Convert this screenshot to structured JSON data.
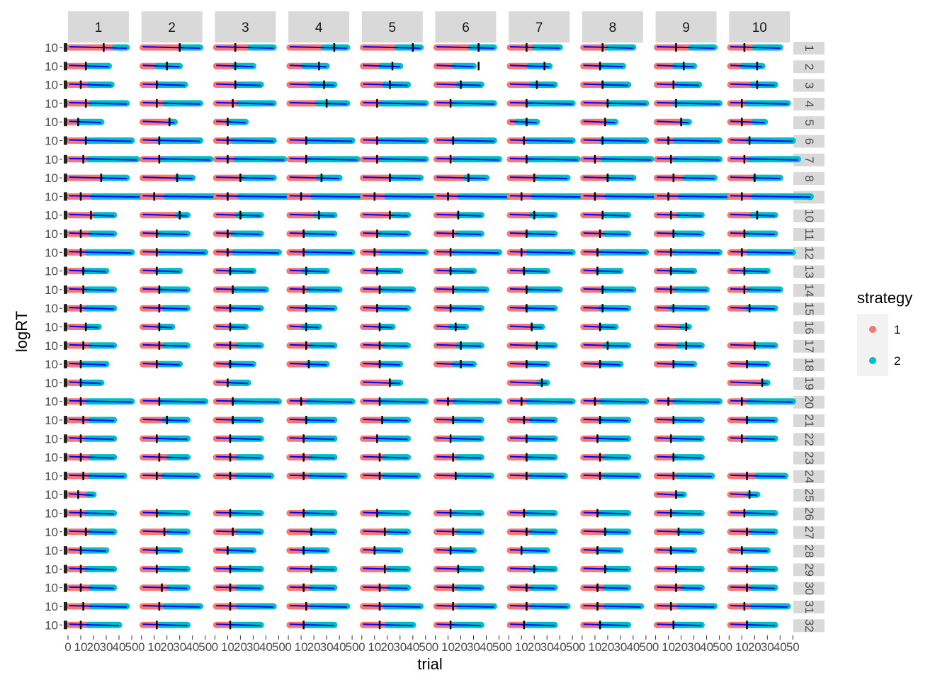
{
  "chart_data": {
    "type": "scatter",
    "title": "",
    "xlabel": "trial",
    "ylabel": "logRT",
    "facet_columns": [
      "1",
      "2",
      "3",
      "4",
      "5",
      "6",
      "7",
      "8",
      "9",
      "10"
    ],
    "facet_rows": [
      "1",
      "2",
      "3",
      "4",
      "5",
      "6",
      "7",
      "8",
      "9",
      "10",
      "11",
      "12",
      "13",
      "14",
      "15",
      "16",
      "17",
      "18",
      "19",
      "20",
      "21",
      "22",
      "23",
      "24",
      "25",
      "26",
      "27",
      "28",
      "29",
      "30",
      "31",
      "32"
    ],
    "x_ticks": [
      "0",
      "10",
      "20",
      "30",
      "40",
      "50"
    ],
    "y_tick": "10",
    "xlim": [
      0,
      50
    ],
    "legend": {
      "title": "strategy",
      "position": "right",
      "entries": [
        {
          "label": "1",
          "color": "#F8766D"
        },
        {
          "label": "2",
          "color": "#00BFC4"
        }
      ]
    },
    "colors": {
      "strategy_1": "#F8766D",
      "strategy_2": "#00BFC4",
      "fit_line": "#0000FF",
      "marker": "#000000",
      "strip_bg": "#D9D9D9"
    },
    "cells": [
      [
        "46/28/0.8",
        "46/30/0.7",
        "46/16/0.6",
        "46/36/0.6",
        "46/40/0.6",
        "46/34/0.6",
        "40/14/0.5",
        "40/16/0.5",
        "46/16/0.6",
        "40/12/0.5"
      ],
      [
        "32/14/0.5",
        "30/20/0.4",
        "30/16/0.5",
        "30/24/0.4",
        "30/24/0.5",
        "30/34/0.5",
        "32/28/0.5",
        "32/14/0.5",
        "30/22/0.5",
        "26/22/0.4"
      ],
      [
        "34/10/0.5",
        "34/12/0.4",
        "36/16/0.5",
        "36/28/0.5",
        "36/22/0.5",
        "36/20/0.5",
        "36/22/0.5",
        "36/16/0.5",
        "34/14/0.5",
        "36/22/0.5"
      ],
      [
        "46/14/0.4",
        "46/12/0.4",
        "46/14/0.4",
        "46/30/0.5",
        "50/12/0.3",
        "46/12/0.3",
        "50/14/0.3",
        "50/20/0.4",
        "50/16/0.3",
        "46/10/0.3"
      ],
      [
        "26/8/0.3",
        "26/22/0.9",
        "24/10/0.5",
        "0/0/0",
        "0/0/0",
        "0/0/0",
        "22/14/0.3",
        "26/18/0.8",
        "26/20/0.8",
        "28/10/0.7"
      ],
      [
        "50/14/0.3",
        "46/14/0.3",
        "46/10/0.3",
        "50/14/0.3",
        "50/12/0.3",
        "46/14/0.3",
        "50/12/0.3",
        "50/16/0.3",
        "50/10/0.3",
        "50/16/0.3"
      ],
      [
        "54/12/0.3",
        "54/14/0.3",
        "54/10/0.3",
        "54/14/0.3",
        "50/12/0.3",
        "50/12/0.3",
        "54/14/0.3",
        "54/10/0.3",
        "50/12/0.3",
        "54/12/0.3"
      ],
      [
        "46/26/0.6",
        "40/28/0.7",
        "46/20/0.5",
        "40/26/0.6",
        "46/22/0.5",
        "40/26/0.6",
        "46/20/0.5",
        "40/20/0.5",
        "46/14/0.5",
        "40/20/0.5"
      ],
      [
        "64/10/0.3",
        "64/10/0.3",
        "64/10/0.3",
        "64/10/0.3",
        "64/10/0.3",
        "64/10/0.3",
        "64/10/0.3",
        "64/10/0.3",
        "64/10/0.3",
        "64/10/0.3"
      ],
      [
        "36/18/0.6",
        "36/30/0.8",
        "36/20/0.5",
        "36/24/0.6",
        "36/22/0.7",
        "36/18/0.5",
        "36/20/0.5",
        "36/16/0.5",
        "36/12/0.5",
        "36/22/0.5"
      ],
      [
        "36/10/0.5",
        "36/12/0.4",
        "36/10/0.4",
        "36/12/0.4",
        "36/12/0.4",
        "36/14/0.5",
        "36/14/0.4",
        "36/14/0.5",
        "36/14/0.4",
        "36/12/0.4"
      ],
      [
        "50/10/0.3",
        "50/12/0.3",
        "50/10/0.3",
        "50/12/0.3",
        "50/10/0.3",
        "50/12/0.3",
        "50/10/0.3",
        "50/12/0.3",
        "50/12/0.3",
        "50/10/0.3"
      ],
      [
        "30/12/0.4",
        "30/12/0.4",
        "30/12/0.4",
        "30/14/0.4",
        "30/12/0.4",
        "30/12/0.4",
        "30/12/0.4",
        "30/12/0.4",
        "30/12/0.4",
        "30/12/0.4"
      ],
      [
        "36/12/0.4",
        "36/14/0.4",
        "40/14/0.4",
        "40/12/0.4",
        "40/14/0.4",
        "40/14/0.4",
        "40/14/0.4",
        "40/16/0.4",
        "40/12/0.4",
        "40/12/0.4"
      ],
      [
        "36/10/0.4",
        "36/14/0.5",
        "36/12/0.4",
        "36/14/0.4",
        "36/12/0.4",
        "36/12/0.4",
        "36/14/0.4",
        "36/16/0.4",
        "40/14/0.3",
        "36/16/0.4"
      ],
      [
        "24/14/0.6",
        "24/14/0.6",
        "24/12/0.6",
        "24/14/0.5",
        "24/14/0.6",
        "24/16/0.5",
        "26/18/0.8",
        "26/14/0.6",
        "26/24/0.8",
        "0/0/0"
      ],
      [
        "36/12/0.5",
        "36/14/0.5",
        "36/12/0.5",
        "36/14/0.5",
        "36/14/0.5",
        "36/20/0.5",
        "36/22/0.6",
        "36/20/0.5",
        "36/24/0.5",
        "36/20/0.6"
      ],
      [
        "30/10/0.4",
        "30/12/0.5",
        "30/12/0.4",
        "30/16/0.5",
        "30/14/0.5",
        "30/20/0.5",
        "30/14/0.5",
        "30/14/0.5",
        "30/14/0.5",
        "30/14/0.5"
      ],
      [
        "26/10/0.4",
        "0/0/0",
        "26/10/0.5",
        "0/0/0",
        "30/22/0.8",
        "0/0/0",
        "30/26/0.8",
        "0/0/0",
        "0/0/0",
        "30/26/0.9"
      ],
      [
        "50/10/0.3",
        "50/14/0.3",
        "50/14/0.3",
        "50/10/0.3",
        "50/14/0.3",
        "50/10/0.3",
        "50/10/0.3",
        "50/10/0.3",
        "50/10/0.3",
        "50/10/0.3"
      ],
      [
        "36/12/0.5",
        "36/20/0.5",
        "36/14/0.4",
        "36/14/0.4",
        "36/16/0.5",
        "36/14/0.4",
        "36/12/0.5",
        "36/14/0.4",
        "36/14/0.4",
        "36/14/0.4"
      ],
      [
        "36/10/0.4",
        "36/12/0.4",
        "36/12/0.4",
        "36/12/0.4",
        "36/12/0.4",
        "36/12/0.4",
        "36/14/0.4",
        "36/12/0.4",
        "36/12/0.4",
        "36/10/0.4"
      ],
      [
        "36/10/0.5",
        "36/14/0.6",
        "36/12/0.5",
        "36/12/0.5",
        "36/14/0.5",
        "36/14/0.5",
        "36/14/0.4",
        "36/14/0.5",
        "36/14/0.4",
        "0/0/0"
      ],
      [
        "44/12/0.4",
        "44/12/0.4",
        "44/12/0.4",
        "44/12/0.4",
        "44/14/0.4",
        "44/16/0.4",
        "44/14/0.4",
        "44/14/0.4",
        "44/14/0.4",
        "44/14/0.5"
      ],
      [
        "20/8/0.8",
        "0/0/0",
        "0/0/0",
        "0/0/0",
        "0/0/0",
        "0/0/0",
        "0/0/0",
        "0/0/0",
        "22/16/0.8",
        "22/16/0.7"
      ],
      [
        "36/10/0.4",
        "36/12/0.4",
        "36/12/0.4",
        "36/12/0.4",
        "36/12/0.4",
        "36/12/0.4",
        "36/12/0.4",
        "36/12/0.4",
        "36/12/0.4",
        "36/12/0.4"
      ],
      [
        "36/14/0.5",
        "36/18/0.6",
        "36/14/0.5",
        "36/18/0.5",
        "36/18/0.6",
        "36/14/0.5",
        "36/14/0.5",
        "36/18/0.5",
        "36/18/0.5",
        "36/14/0.5"
      ],
      [
        "30/10/0.4",
        "30/12/0.4",
        "30/10/0.4",
        "30/12/0.4",
        "30/10/0.4",
        "30/12/0.4",
        "30/10/0.4",
        "30/12/0.4",
        "30/12/0.4",
        "30/10/0.4"
      ],
      [
        "36/10/0.4",
        "36/12/0.4",
        "36/12/0.4",
        "36/18/0.6",
        "36/18/0.6",
        "36/18/0.5",
        "36/20/0.5",
        "36/18/0.5",
        "36/16/0.5",
        "36/14/0.5"
      ],
      [
        "36/10/0.5",
        "36/16/0.6",
        "36/12/0.5",
        "36/12/0.5",
        "36/14/0.6",
        "36/14/0.5",
        "36/14/0.5",
        "36/12/0.5",
        "36/16/0.6",
        "36/14/0.5"
      ],
      [
        "46/12/0.4",
        "46/14/0.4",
        "46/12/0.4",
        "46/14/0.4",
        "46/14/0.4",
        "46/14/0.4",
        "46/14/0.4",
        "46/12/0.4",
        "46/12/0.4",
        "46/12/0.4"
      ],
      [
        "40/10/0.4",
        "36/12/0.4",
        "36/12/0.4",
        "36/12/0.4",
        "40/14/0.5",
        "36/12/0.4",
        "36/12/0.4",
        "36/14/0.4",
        "36/14/0.4",
        "36/14/0.4"
      ]
    ]
  }
}
